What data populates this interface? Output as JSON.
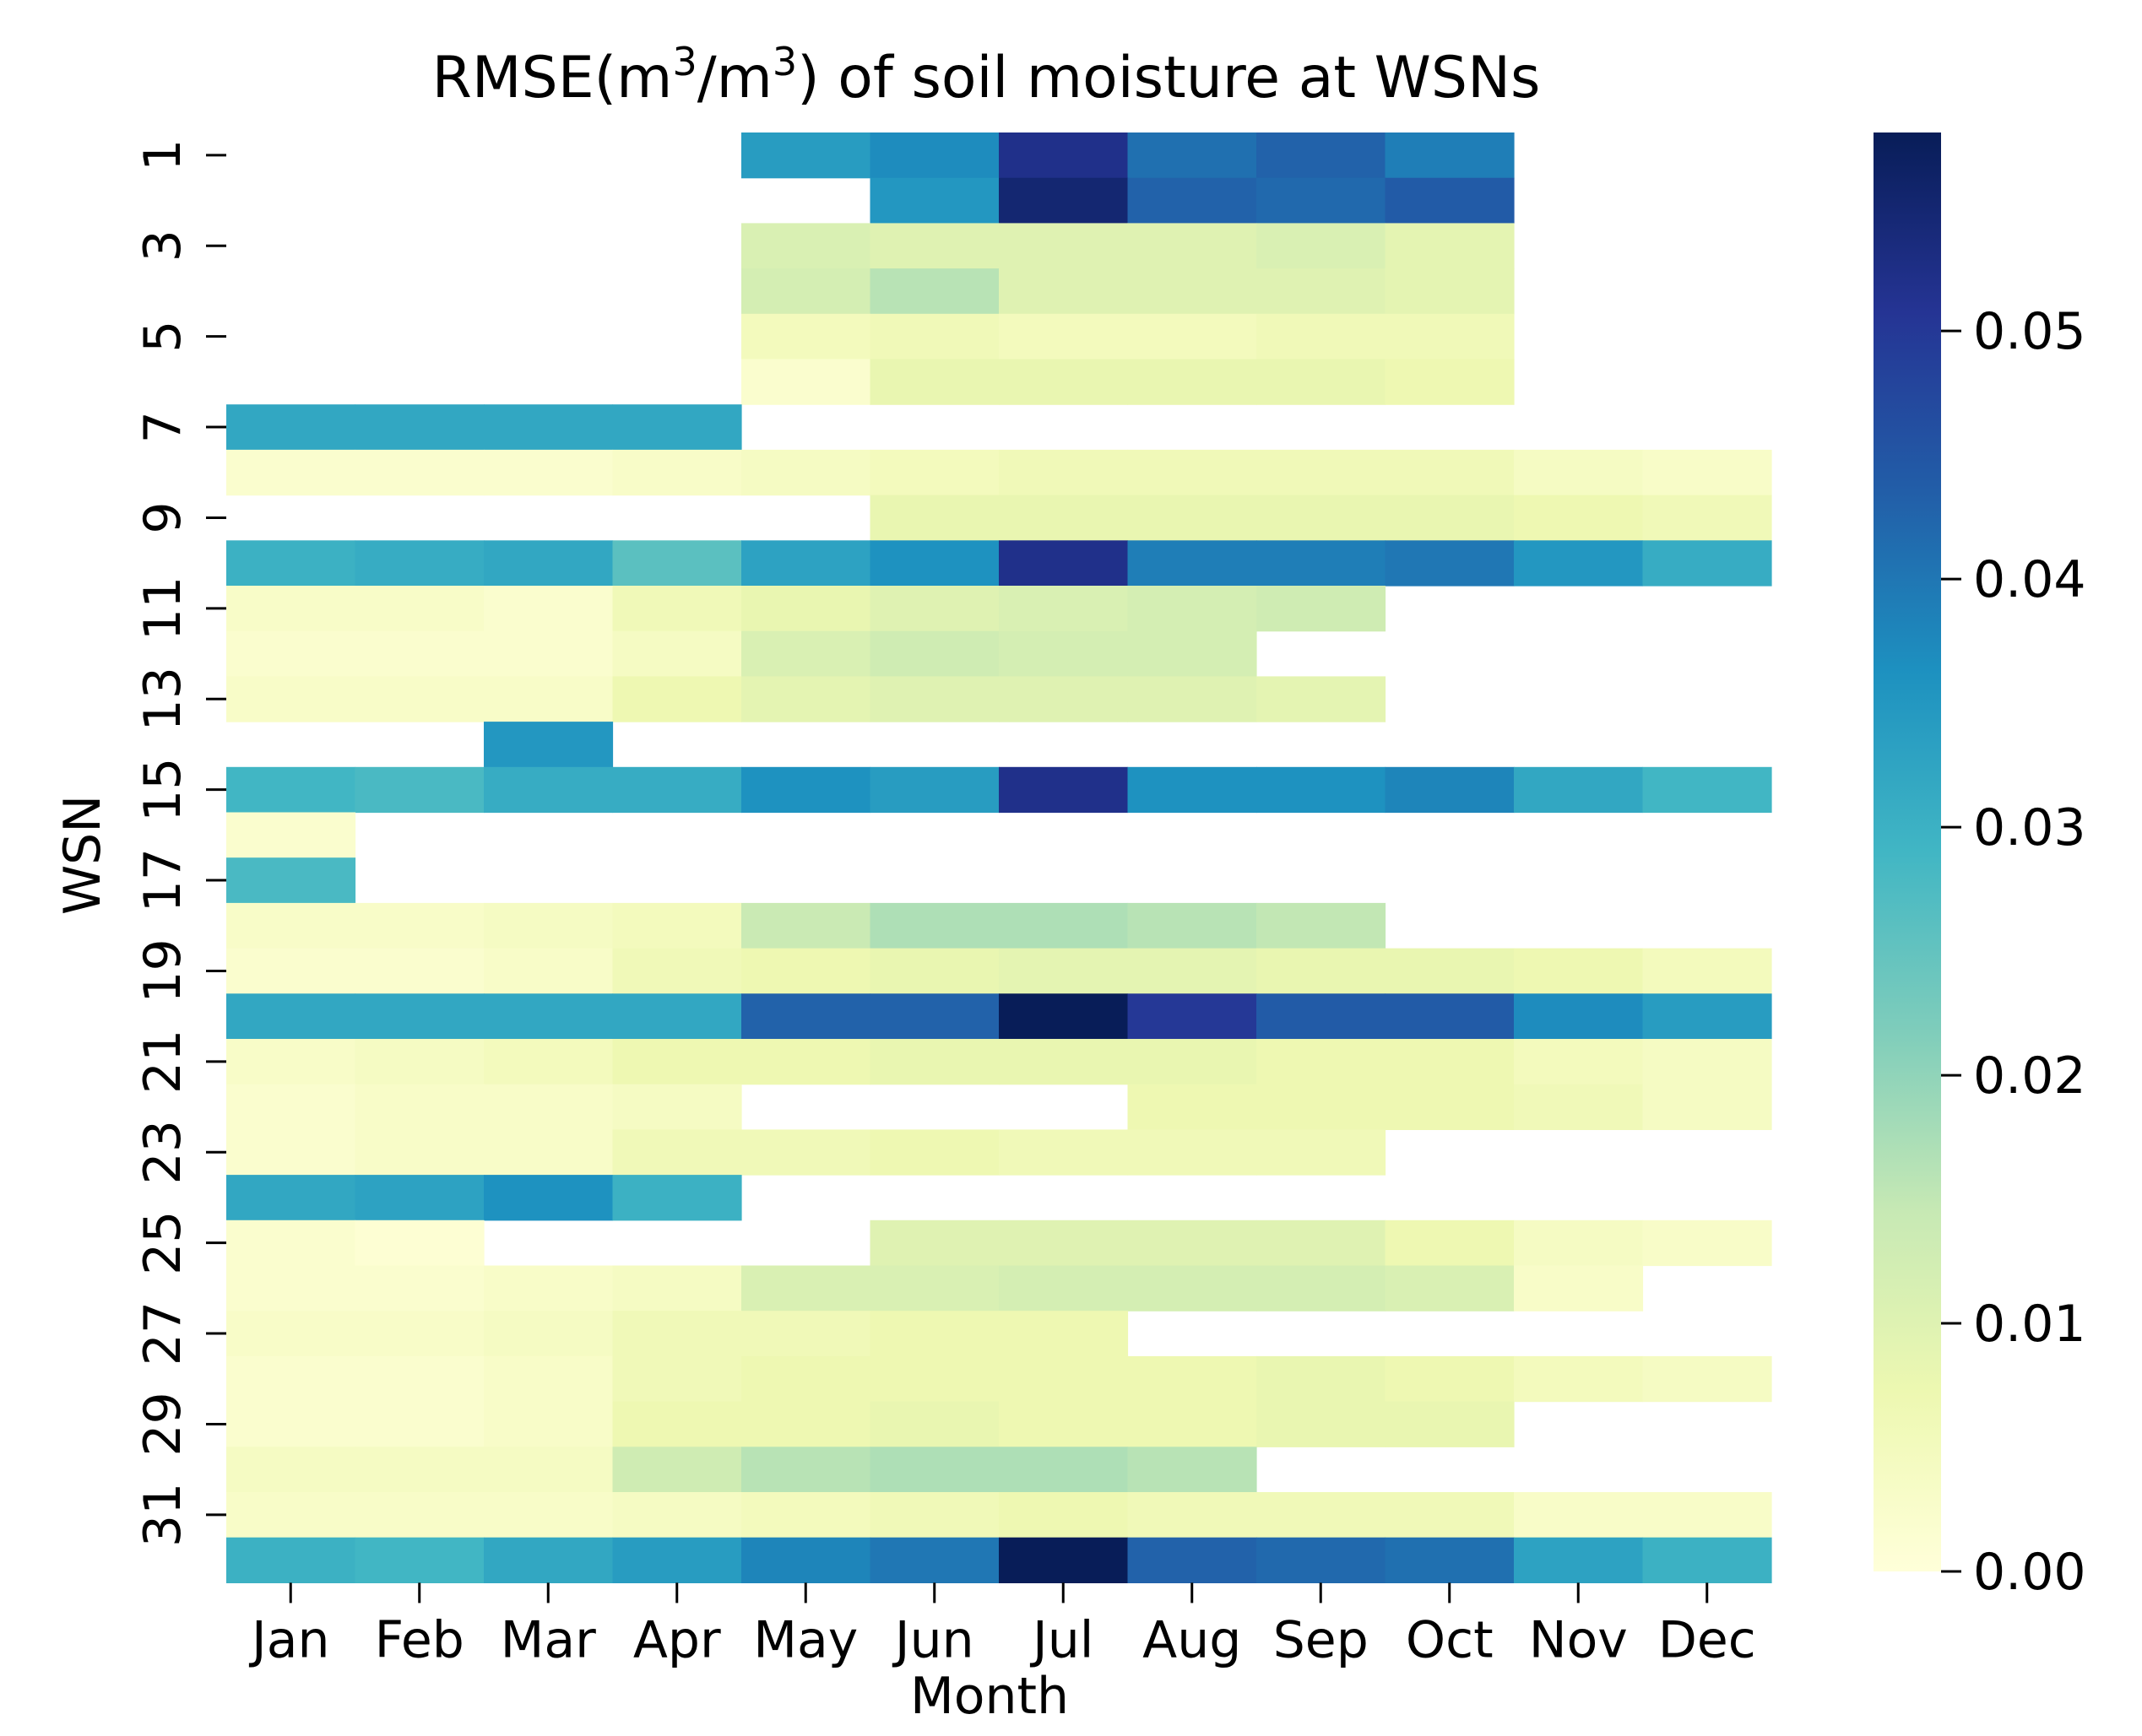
{
  "chart_data": {
    "type": "heatmap",
    "title_prefix": "RMSE(m",
    "title_sup1": "3",
    "title_mid": "/m",
    "title_sup2": "3",
    "title_suffix": ") of soil moisture at WSNs",
    "xlabel": "Month",
    "ylabel": "WSN",
    "x_categories": [
      "Jan",
      "Feb",
      "Mar",
      "Apr",
      "May",
      "Jun",
      "Jul",
      "Aug",
      "Sep",
      "Oct",
      "Nov",
      "Dec"
    ],
    "y_categories": [
      "1",
      "2",
      "3",
      "4",
      "5",
      "6",
      "7",
      "8",
      "9",
      "10",
      "11",
      "12",
      "13",
      "14",
      "15",
      "16",
      "17",
      "18",
      "19",
      "20",
      "21",
      "22",
      "23",
      "24",
      "25",
      "26",
      "27",
      "28",
      "29",
      "30",
      "31",
      "32"
    ],
    "y_tick_labels": [
      "1",
      "3",
      "5",
      "7",
      "9",
      "11",
      "13",
      "15",
      "17",
      "19",
      "21",
      "23",
      "25",
      "27",
      "29",
      "31"
    ],
    "colormap": "YlGnBu",
    "colorbar": {
      "range": [
        0.0,
        0.058
      ],
      "ticks": [
        0.0,
        0.01,
        0.02,
        0.03,
        0.04,
        0.05
      ],
      "tick_labels": [
        "0.00",
        "0.01",
        "0.02",
        "0.03",
        "0.04",
        "0.05"
      ]
    },
    "values": [
      [
        null,
        null,
        null,
        null,
        0.034,
        0.037,
        0.052,
        0.041,
        0.043,
        0.039,
        null,
        null
      ],
      [
        null,
        null,
        null,
        null,
        null,
        0.035,
        0.055,
        0.043,
        0.042,
        0.044,
        null,
        null
      ],
      [
        null,
        null,
        null,
        null,
        0.011,
        0.01,
        0.01,
        0.01,
        0.011,
        0.009,
        null,
        null
      ],
      [
        null,
        null,
        null,
        null,
        0.012,
        0.016,
        0.01,
        0.01,
        0.01,
        0.009,
        null,
        null
      ],
      [
        null,
        null,
        null,
        null,
        0.005,
        0.006,
        0.005,
        0.005,
        0.006,
        0.006,
        null,
        null
      ],
      [
        null,
        null,
        null,
        null,
        0.002,
        0.008,
        0.008,
        0.008,
        0.008,
        0.007,
        null,
        null
      ],
      [
        0.032,
        0.032,
        0.032,
        0.032,
        null,
        null,
        null,
        null,
        null,
        null,
        null,
        null
      ],
      [
        0.002,
        0.002,
        0.002,
        0.003,
        0.004,
        0.005,
        0.006,
        0.006,
        0.006,
        0.006,
        0.004,
        0.003
      ],
      [
        null,
        null,
        null,
        null,
        null,
        0.008,
        0.008,
        0.008,
        0.008,
        0.008,
        0.007,
        0.006
      ],
      [
        0.03,
        0.031,
        0.032,
        0.026,
        0.033,
        0.036,
        0.052,
        0.039,
        0.039,
        0.04,
        0.035,
        0.031
      ],
      [
        0.003,
        0.003,
        0.002,
        0.006,
        0.008,
        0.01,
        0.011,
        0.012,
        0.013,
        null,
        null,
        null
      ],
      [
        0.002,
        0.002,
        0.002,
        0.004,
        0.011,
        0.013,
        0.012,
        0.012,
        null,
        null,
        null,
        null
      ],
      [
        0.003,
        0.003,
        0.003,
        0.007,
        0.009,
        0.01,
        0.01,
        0.01,
        0.009,
        null,
        null,
        null
      ],
      [
        null,
        null,
        0.035,
        null,
        null,
        null,
        null,
        null,
        null,
        null,
        null,
        null
      ],
      [
        0.029,
        0.028,
        0.031,
        0.031,
        0.036,
        0.034,
        0.052,
        0.036,
        0.036,
        0.038,
        0.032,
        0.029
      ],
      [
        0.002,
        null,
        null,
        null,
        null,
        null,
        null,
        null,
        null,
        null,
        null,
        null
      ],
      [
        0.028,
        null,
        null,
        null,
        null,
        null,
        null,
        null,
        null,
        null,
        null,
        null
      ],
      [
        0.003,
        0.003,
        0.004,
        0.005,
        0.014,
        0.017,
        0.017,
        0.016,
        0.015,
        null,
        null,
        null
      ],
      [
        0.002,
        0.002,
        0.003,
        0.006,
        0.007,
        0.008,
        0.009,
        0.009,
        0.008,
        0.008,
        0.007,
        0.005
      ],
      [
        0.032,
        0.032,
        0.032,
        0.032,
        0.043,
        0.043,
        0.058,
        0.05,
        0.044,
        0.044,
        0.037,
        0.034
      ],
      [
        0.003,
        0.004,
        0.005,
        0.007,
        0.007,
        0.008,
        0.008,
        0.008,
        0.007,
        0.007,
        0.005,
        0.004
      ],
      [
        0.002,
        0.003,
        0.003,
        0.004,
        null,
        null,
        null,
        0.007,
        0.007,
        0.007,
        0.006,
        0.004
      ],
      [
        0.002,
        0.003,
        0.003,
        0.006,
        0.006,
        0.007,
        0.006,
        0.006,
        0.006,
        null,
        null,
        null
      ],
      [
        0.032,
        0.033,
        0.036,
        0.03,
        null,
        null,
        null,
        null,
        null,
        null,
        null,
        null
      ],
      [
        0.002,
        0.001,
        null,
        null,
        null,
        0.01,
        0.01,
        0.01,
        0.01,
        0.007,
        0.004,
        0.003
      ],
      [
        0.002,
        0.002,
        0.003,
        0.004,
        0.011,
        0.011,
        0.012,
        0.012,
        0.012,
        0.011,
        0.003,
        null
      ],
      [
        0.003,
        0.003,
        0.004,
        0.006,
        0.006,
        0.007,
        0.007,
        null,
        null,
        null,
        null,
        null
      ],
      [
        0.002,
        0.002,
        0.003,
        0.006,
        0.007,
        0.007,
        0.007,
        0.007,
        0.008,
        0.007,
        0.005,
        0.004
      ],
      [
        0.002,
        0.002,
        0.003,
        0.007,
        0.007,
        0.008,
        0.007,
        0.007,
        0.008,
        0.008,
        null,
        null
      ],
      [
        0.004,
        0.004,
        0.004,
        0.013,
        0.016,
        0.017,
        0.017,
        0.016,
        null,
        null,
        null,
        null
      ],
      [
        0.003,
        0.003,
        0.003,
        0.004,
        0.005,
        0.006,
        0.007,
        0.006,
        0.006,
        0.006,
        0.003,
        0.003
      ],
      [
        0.03,
        0.029,
        0.032,
        0.034,
        0.038,
        0.04,
        0.058,
        0.043,
        0.042,
        0.041,
        0.033,
        0.03
      ]
    ]
  }
}
